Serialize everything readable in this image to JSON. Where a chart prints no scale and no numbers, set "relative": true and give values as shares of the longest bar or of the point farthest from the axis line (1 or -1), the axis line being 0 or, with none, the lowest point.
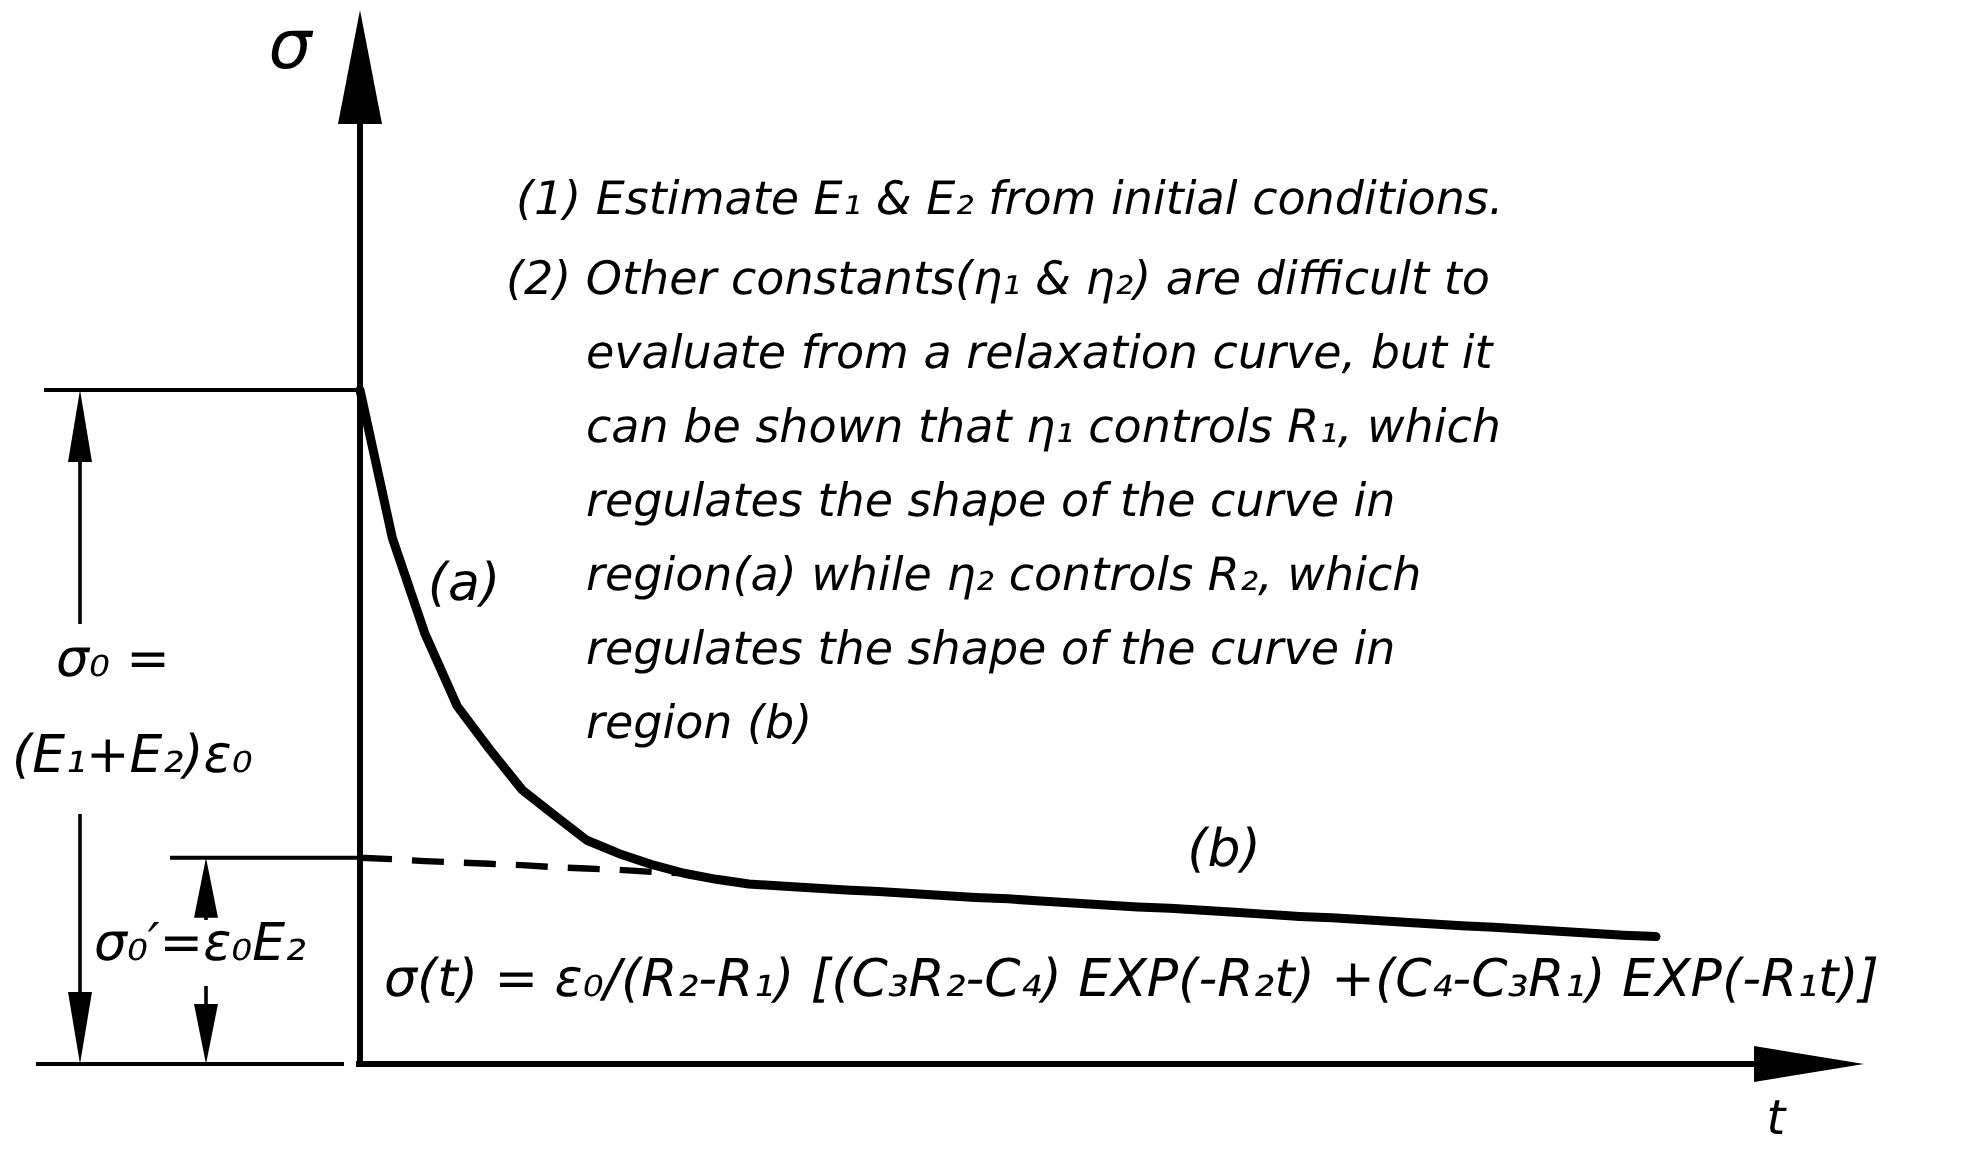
{
  "chart_data": {
    "type": "line",
    "relative": true,
    "ylabel": "σ",
    "xlabel": "t",
    "categories": [
      null,
      null,
      null,
      null,
      null,
      null,
      null,
      null,
      null,
      null,
      null,
      null,
      null,
      null,
      null,
      null,
      null,
      null,
      null,
      null,
      null,
      null,
      null,
      null,
      null,
      null,
      null,
      null,
      null,
      null,
      null,
      null,
      null,
      null,
      null,
      null,
      null,
      null,
      null,
      null,
      null
    ],
    "series": [
      {
        "color": "#000000",
        "values": [
          1.0,
          0.78,
          0.639,
          0.531,
          0.467,
          0.407,
          0.369,
          0.332,
          0.312,
          0.296,
          0.283,
          0.274,
          0.267,
          0.264,
          0.261,
          0.258,
          0.256,
          0.253,
          0.25,
          0.247,
          0.245,
          0.242,
          0.239,
          0.236,
          0.233,
          0.231,
          0.228,
          0.225,
          0.222,
          0.219,
          0.217,
          0.214,
          0.211,
          0.208,
          0.205,
          0.203,
          0.2,
          0.197,
          0.194,
          0.191,
          0.189
        ]
      },
      {
        "color": "#000000",
        "line_style": "dashed",
        "values": [
          0.306,
          0.304,
          0.301,
          0.299,
          0.297,
          0.295,
          0.292,
          0.29,
          0.288,
          0.285,
          0.283,
          null,
          null,
          null,
          null,
          null,
          null,
          null,
          null,
          null,
          null,
          null,
          null,
          null,
          null,
          null,
          null,
          null,
          null,
          null,
          null,
          null,
          null,
          null,
          null,
          null,
          null,
          null,
          null,
          null,
          null
        ]
      }
    ],
    "annotations": [
      "(1) Estimate E₁ & E₂ from initial conditions.",
      "(2) Other constants(η₁ & η₂) are difficult to\nevaluate from a relaxation curve, but it\ncan be shown that η₁ controls R₁, which\nregulates the shape of the curve in\nregion(a) while η₂ controls R₂, which\nregulates the shape of the curve in\nregion (b)",
      "(a)",
      "(b)",
      "σ₀ =\n(E₁+E₂)ε₀",
      "σ₀′=ε₀E₂",
      "σ(t) = ε₀/(R₂-R₁) [(C₃R₂-C₄) EXP(-R₂t) +(C₄-C₃R₁) EXP(-R₁t)]"
    ]
  }
}
